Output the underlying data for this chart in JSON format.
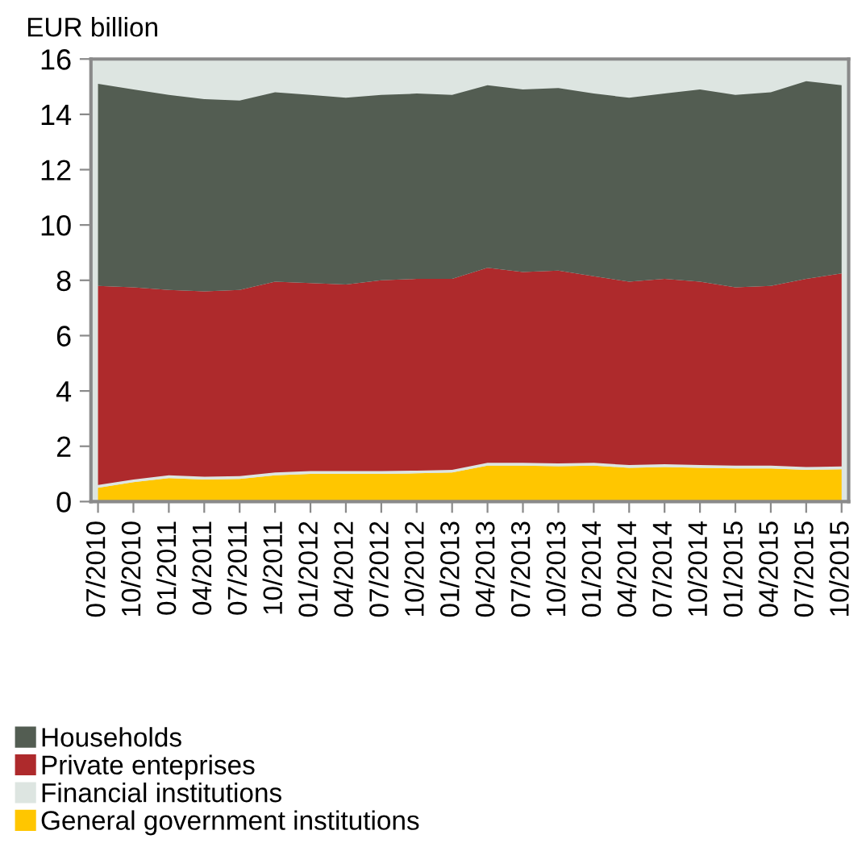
{
  "chart_data": {
    "type": "area",
    "stacked": true,
    "ylabel": "EUR billion",
    "categories": [
      "07/2010",
      "10/2010",
      "01/2011",
      "04/2011",
      "07/2011",
      "10/2011",
      "01/2012",
      "04/2012",
      "07/2012",
      "10/2012",
      "01/2013",
      "04/2013",
      "07/2013",
      "10/2013",
      "01/2014",
      "04/2014",
      "07/2014",
      "10/2014",
      "01/2015",
      "04/2015",
      "07/2015",
      "10/2015"
    ],
    "ylim": [
      0,
      16
    ],
    "yticks": [
      0,
      2,
      4,
      6,
      8,
      10,
      12,
      14,
      16
    ],
    "grid": false,
    "legend": "bottom",
    "series": [
      {
        "name": "General government institutions",
        "color": "#ffc600",
        "values": [
          0.5,
          0.7,
          0.85,
          0.8,
          0.82,
          0.95,
          1.0,
          1.0,
          1.0,
          1.02,
          1.05,
          1.3,
          1.3,
          1.28,
          1.3,
          1.22,
          1.25,
          1.22,
          1.2,
          1.2,
          1.15,
          1.17
        ]
      },
      {
        "name": "Financial institutions",
        "color": "#dde5e1",
        "values": [
          0.1,
          0.1,
          0.1,
          0.1,
          0.1,
          0.1,
          0.1,
          0.1,
          0.1,
          0.1,
          0.1,
          0.1,
          0.1,
          0.1,
          0.1,
          0.1,
          0.1,
          0.1,
          0.1,
          0.1,
          0.1,
          0.1
        ]
      },
      {
        "name": "Private enteprises",
        "color": "#ae2a2c",
        "values": [
          7.2,
          6.95,
          6.7,
          6.7,
          6.73,
          6.9,
          6.8,
          6.75,
          6.9,
          6.93,
          6.9,
          7.05,
          6.9,
          6.97,
          6.75,
          6.63,
          6.7,
          6.63,
          6.45,
          6.5,
          6.8,
          6.98
        ]
      },
      {
        "name": "Households",
        "color": "#535d52",
        "values": [
          7.3,
          7.15,
          7.05,
          6.95,
          6.85,
          6.85,
          6.8,
          6.75,
          6.7,
          6.7,
          6.65,
          6.6,
          6.6,
          6.6,
          6.6,
          6.65,
          6.7,
          6.95,
          6.95,
          7.0,
          7.15,
          6.8
        ]
      }
    ]
  }
}
